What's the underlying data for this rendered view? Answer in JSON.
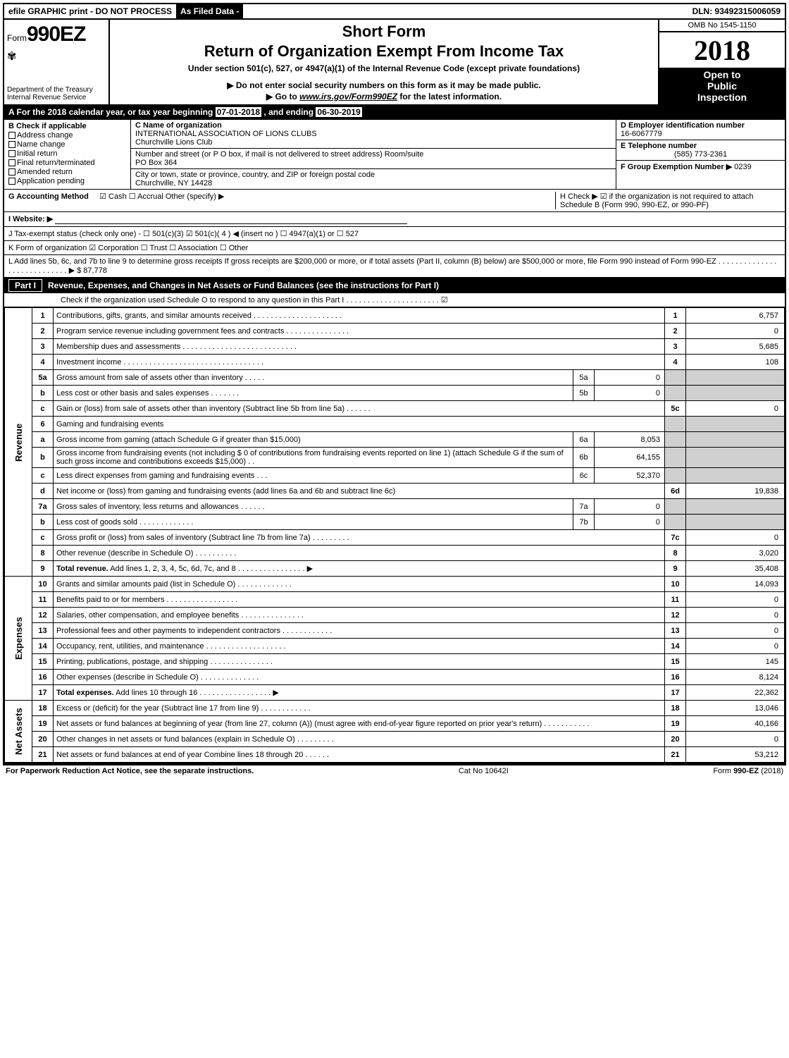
{
  "header": {
    "graphic": "efile GRAPHIC print - DO NOT PROCESS",
    "asFiled": "As Filed Data -",
    "dln": "DLN: 93492315006059"
  },
  "topLeft": {
    "formPrefix": "Form",
    "formNumber": "990EZ",
    "dept1": "Department of the Treasury",
    "dept2": "Internal Revenue Service"
  },
  "topMid": {
    "shortForm": "Short Form",
    "title": "Return of Organization Exempt From Income Tax",
    "subtitle": "Under section 501(c), 527, or 4947(a)(1) of the Internal Revenue Code (except private foundations)",
    "notice": "▶ Do not enter social security numbers on this form as it may be made public.",
    "link": "▶ Go to www.irs.gov/Form990EZ for the latest information."
  },
  "topRight": {
    "omb": "OMB No 1545-1150",
    "year": "2018",
    "open1": "Open to",
    "open2": "Public",
    "open3": "Inspection"
  },
  "lineA": {
    "pre": "A  For the 2018 calendar year, or tax year beginning ",
    "begin": "07-01-2018",
    "mid": " , and ending ",
    "end": "06-30-2019"
  },
  "colB": {
    "header": "B  Check if applicable",
    "items": [
      "Address change",
      "Name change",
      "Initial return",
      "Final return/terminated",
      "Amended return",
      "Application pending"
    ]
  },
  "colC": {
    "nameLbl": "C Name of organization",
    "name1": "INTERNATIONAL ASSOCIATION OF LIONS CLUBS",
    "name2": "Churchville Lions Club",
    "addrLbl": "Number and street (or P O box, if mail is not delivered to street address)  Room/suite",
    "addr": "PO Box 364",
    "cityLbl": "City or town, state or province, country, and ZIP or foreign postal code",
    "city": "Churchville, NY  14428"
  },
  "colD": {
    "dLbl": "D Employer identification number",
    "ein": "16-6067779",
    "eLbl": "E Telephone number",
    "phone": "(585) 773-2361",
    "fLbl": "F Group Exemption Number  ▶ ",
    "fVal": "0239"
  },
  "lineG": {
    "label": "G Accounting Method",
    "opts": "☑ Cash   ☐ Accrual   Other (specify) ▶",
    "hLbl": "H  Check ▶  ☑  if the organization is not required to attach Schedule B (Form 990, 990-EZ, or 990-PF)"
  },
  "lineI": {
    "label": "I Website: ▶"
  },
  "lineJ": {
    "text": "J Tax-exempt status (check only one) - ☐ 501(c)(3)  ☑ 501(c)( 4 ) ◀ (insert no ) ☐ 4947(a)(1) or ☐ 527"
  },
  "lineK": {
    "text": "K Form of organization    ☑ Corporation   ☐ Trust   ☐ Association   ☐ Other"
  },
  "lineL": {
    "text": "L Add lines 5b, 6c, and 7b to line 9 to determine gross receipts  If gross receipts are $200,000 or more, or if total assets (Part II, column (B) below) are $500,000 or more, file Form 990 instead of Form 990-EZ . . . . . . . . . . . . . . . . . . . . . . . . . . . . ▶ $ ",
    "val": "87,778"
  },
  "partI": {
    "label": "Part I",
    "title": "Revenue, Expenses, and Changes in Net Assets or Fund Balances (see the instructions for Part I)",
    "check": "Check if the organization used Schedule O to respond to any question in this Part I . . . . . . . . . . . . . . . . . . . . . . ☑"
  },
  "sideLabels": {
    "revenue": "Revenue",
    "expenses": "Expenses",
    "netassets": "Net Assets"
  },
  "rows": [
    {
      "n": "1",
      "desc": "Contributions, gifts, grants, and similar amounts received . . . . . . . . . . . . . . . . . . . . .",
      "box": "1",
      "val": "6,757"
    },
    {
      "n": "2",
      "desc": "Program service revenue including government fees and contracts . . . . . . . . . . . . . . .",
      "box": "2",
      "val": "0"
    },
    {
      "n": "3",
      "desc": "Membership dues and assessments . . . . . . . . . . . . . . . . . . . . . . . . . . .",
      "box": "3",
      "val": "5,685"
    },
    {
      "n": "4",
      "desc": "Investment income . . . . . . . . . . . . . . . . . . . . . . . . . . . . . . . . .",
      "box": "4",
      "val": "108"
    },
    {
      "n": "5a",
      "desc": "Gross amount from sale of assets other than inventory . . . . .",
      "il": "5a",
      "iv": "0"
    },
    {
      "n": "b",
      "desc": "Less  cost or other basis and sales expenses . . . . . . .",
      "il": "5b",
      "iv": "0"
    },
    {
      "n": "c",
      "desc": "Gain or (loss) from sale of assets other than inventory (Subtract line 5b from line 5a) . . . . . .",
      "box": "5c",
      "val": "0"
    },
    {
      "n": "6",
      "desc": "Gaming and fundraising events"
    },
    {
      "n": "a",
      "desc": "Gross income from gaming (attach Schedule G if greater than $15,000)",
      "il": "6a",
      "iv": "8,053"
    },
    {
      "n": "b",
      "desc": "Gross income from fundraising events (not including $  0            of contributions from fundraising events reported on line 1) (attach Schedule G if the sum of such gross income and contributions exceeds $15,000) . .",
      "il": "6b",
      "iv": "64,155"
    },
    {
      "n": "c",
      "desc": "Less  direct expenses from gaming and fundraising events    . . .",
      "il": "6c",
      "iv": "52,370"
    },
    {
      "n": "d",
      "desc": "Net income or (loss) from gaming and fundraising events (add lines 6a and 6b and subtract line 6c)",
      "box": "6d",
      "val": "19,838"
    },
    {
      "n": "7a",
      "desc": "Gross sales of inventory, less returns and allowances . . . . . .",
      "il": "7a",
      "iv": "0"
    },
    {
      "n": "b",
      "desc": "Less  cost of goods sold           . . . . . . . . . . . . .",
      "il": "7b",
      "iv": "0"
    },
    {
      "n": "c",
      "desc": "Gross profit or (loss) from sales of inventory (Subtract line 7b from line 7a) . . . . . . . . .",
      "box": "7c",
      "val": "0"
    },
    {
      "n": "8",
      "desc": "Other revenue (describe in Schedule O)              . . . . . . . . . .",
      "box": "8",
      "val": "3,020"
    },
    {
      "n": "9",
      "desc": "Total revenue. Add lines 1, 2, 3, 4, 5c, 6d, 7c, and 8 . . . . . . . . . . . . . . . .  ▶",
      "box": "9",
      "val": "35,408",
      "bold": true
    },
    {
      "n": "10",
      "desc": "Grants and similar amounts paid (list in Schedule O)        . . . . . . . . . . . . .",
      "box": "10",
      "val": "14,093"
    },
    {
      "n": "11",
      "desc": "Benefits paid to or for members              . . . . . . . . . . . . . . . . .",
      "box": "11",
      "val": "0"
    },
    {
      "n": "12",
      "desc": "Salaries, other compensation, and employee benefits . . . . . . . . . . . . . . .",
      "box": "12",
      "val": "0"
    },
    {
      "n": "13",
      "desc": "Professional fees and other payments to independent contractors  . . . . . . . . . . . .",
      "box": "13",
      "val": "0"
    },
    {
      "n": "14",
      "desc": "Occupancy, rent, utilities, and maintenance . . . . . . . . . . . . . . . . . . .",
      "box": "14",
      "val": "0"
    },
    {
      "n": "15",
      "desc": "Printing, publications, postage, and shipping       . . . . . . . . . . . . . . .",
      "box": "15",
      "val": "145"
    },
    {
      "n": "16",
      "desc": "Other expenses (describe in Schedule O)          . . . . . . . . . . . . . .",
      "box": "16",
      "val": "8,124"
    },
    {
      "n": "17",
      "desc": "Total expenses. Add lines 10 through 16      . . . . . . . . . . . . . . . . .  ▶",
      "box": "17",
      "val": "22,362",
      "bold": true
    },
    {
      "n": "18",
      "desc": "Excess or (deficit) for the year (Subtract line 17 from line 9)     . . . . . . . . . . . .",
      "box": "18",
      "val": "13,046"
    },
    {
      "n": "19",
      "desc": "Net assets or fund balances at beginning of year (from line 27, column (A)) (must agree with end-of-year figure reported on prior year's return)        . . . . . . . . . . .",
      "box": "19",
      "val": "40,166"
    },
    {
      "n": "20",
      "desc": "Other changes in net assets or fund balances (explain in Schedule O)    . . . . . . . . .",
      "box": "20",
      "val": "0"
    },
    {
      "n": "21",
      "desc": "Net assets or fund balances at end of year  Combine lines 18 through 20      . . . . . .",
      "box": "21",
      "val": "53,212"
    }
  ],
  "footer": {
    "left": "For Paperwork Reduction Act Notice, see the separate instructions.",
    "mid": "Cat No  10642I",
    "right": "Form 990-EZ (2018)"
  }
}
